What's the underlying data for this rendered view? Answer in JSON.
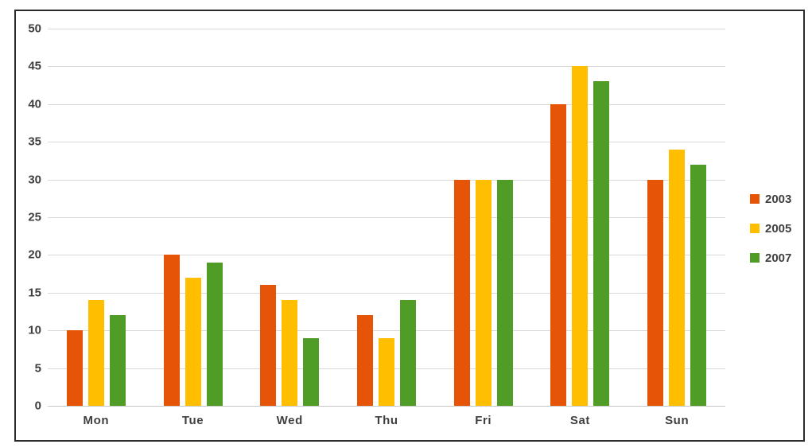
{
  "chart_data": {
    "type": "bar",
    "title": "",
    "xlabel": "",
    "ylabel": "",
    "categories": [
      "Mon",
      "Tue",
      "Wed",
      "Thu",
      "Fri",
      "Sat",
      "Sun"
    ],
    "series": [
      {
        "name": "2003",
        "color": "#e65507",
        "values": [
          10,
          20,
          16,
          12,
          30,
          40,
          30
        ]
      },
      {
        "name": "2005",
        "color": "#ffbf00",
        "values": [
          14,
          17,
          14,
          9,
          30,
          45,
          34
        ]
      },
      {
        "name": "2007",
        "color": "#4f9d26",
        "values": [
          12,
          19,
          9,
          14,
          30,
          43,
          32
        ]
      }
    ],
    "ylim": [
      0,
      50
    ],
    "yticks": [
      0,
      5,
      10,
      15,
      20,
      25,
      30,
      35,
      40,
      45,
      50
    ],
    "grid": true,
    "legend_position": "right",
    "style": {
      "gridline_color": "#d9d9d9",
      "baseline_color": "#c9c9c9",
      "tick_label_color": "#3f3f3f",
      "frame_border_color": "#2b2b2b",
      "background_color": "#ffffff"
    }
  }
}
